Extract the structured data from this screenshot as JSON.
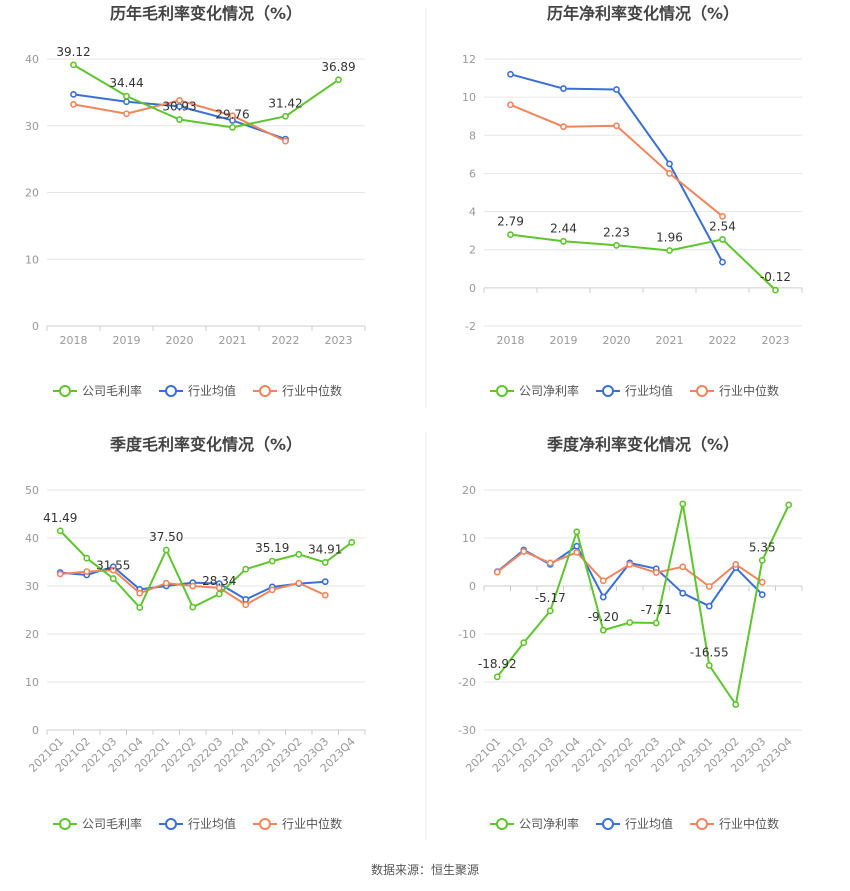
{
  "source_text": "数据来源：恒生聚源",
  "colors": {
    "company": "#5ec52e",
    "industry_avg": "#3a6fd8",
    "industry_median": "#f0855e",
    "grid": "#e6e6e6",
    "axis": "#cccccc",
    "tick_text": "#999999",
    "title_text": "#444444",
    "label_text": "#333333"
  },
  "chart_data": [
    {
      "type": "line",
      "title": "历年毛利率变化情况（%）",
      "categories": [
        "2018",
        "2019",
        "2020",
        "2021",
        "2022",
        "2023"
      ],
      "ylim": [
        0,
        40
      ],
      "yticks": [
        0,
        10,
        20,
        30,
        40
      ],
      "rotate_x_labels": false,
      "legend_position": "bottom",
      "series": [
        {
          "name": "公司毛利率",
          "color_key": "company",
          "labeled": true,
          "values": [
            39.12,
            34.44,
            30.93,
            29.76,
            31.42,
            36.89
          ],
          "labels": [
            "39.12",
            "34.44",
            "30.93",
            "29.76",
            "31.42",
            "36.89"
          ]
        },
        {
          "name": "行业均值",
          "color_key": "industry_avg",
          "labeled": false,
          "values": [
            34.7,
            33.6,
            32.9,
            30.8,
            28.0,
            null
          ]
        },
        {
          "name": "行业中位数",
          "color_key": "industry_median",
          "labeled": false,
          "values": [
            33.2,
            31.8,
            33.8,
            31.5,
            27.7,
            null
          ]
        }
      ]
    },
    {
      "type": "line",
      "title": "历年净利率变化情况（%）",
      "categories": [
        "2018",
        "2019",
        "2020",
        "2021",
        "2022",
        "2023"
      ],
      "ylim": [
        -2,
        12
      ],
      "yticks": [
        -2,
        0,
        2,
        4,
        6,
        8,
        10,
        12
      ],
      "rotate_x_labels": false,
      "legend_position": "bottom",
      "series": [
        {
          "name": "公司净利率",
          "color_key": "company",
          "labeled": true,
          "values": [
            2.79,
            2.44,
            2.23,
            1.96,
            2.54,
            -0.12
          ],
          "labels": [
            "2.79",
            "2.44",
            "2.23",
            "1.96",
            "2.54",
            "-0.12"
          ]
        },
        {
          "name": "行业均值",
          "color_key": "industry_avg",
          "labeled": false,
          "values": [
            11.2,
            10.45,
            10.4,
            6.5,
            1.35,
            null
          ]
        },
        {
          "name": "行业中位数",
          "color_key": "industry_median",
          "labeled": false,
          "values": [
            9.6,
            8.45,
            8.5,
            6.0,
            3.75,
            null
          ]
        }
      ]
    },
    {
      "type": "line",
      "title": "季度毛利率变化情况（%）",
      "categories": [
        "2021Q1",
        "2021Q2",
        "2021Q3",
        "2021Q4",
        "2022Q1",
        "2022Q2",
        "2022Q3",
        "2022Q4",
        "2023Q1",
        "2023Q2",
        "2023Q3",
        "2023Q4"
      ],
      "ylim": [
        0,
        50
      ],
      "yticks": [
        0,
        10,
        20,
        30,
        40,
        50
      ],
      "rotate_x_labels": true,
      "legend_position": "bottom",
      "series": [
        {
          "name": "公司毛利率",
          "color_key": "company",
          "labeled": true,
          "values": [
            41.49,
            35.8,
            31.55,
            25.5,
            37.5,
            25.6,
            28.34,
            33.5,
            35.19,
            36.6,
            34.91,
            39.1
          ],
          "labels": [
            "41.49",
            "",
            "31.55",
            "",
            "37.50",
            "",
            "28.34",
            "",
            "35.19",
            "",
            "34.91",
            ""
          ]
        },
        {
          "name": "行业均值",
          "color_key": "industry_avg",
          "labeled": false,
          "values": [
            32.8,
            32.3,
            34.0,
            29.3,
            30.0,
            30.7,
            30.5,
            27.2,
            29.8,
            30.5,
            30.9,
            null
          ]
        },
        {
          "name": "行业中位数",
          "color_key": "industry_median",
          "labeled": false,
          "values": [
            32.5,
            33.0,
            33.3,
            28.5,
            30.6,
            30.0,
            29.6,
            26.1,
            29.2,
            30.6,
            28.1,
            null
          ]
        }
      ]
    },
    {
      "type": "line",
      "title": "季度净利率变化情况（%）",
      "categories": [
        "2021Q1",
        "2021Q2",
        "2021Q3",
        "2021Q4",
        "2022Q1",
        "2022Q2",
        "2022Q3",
        "2022Q4",
        "2023Q1",
        "2023Q2",
        "2023Q3",
        "2023Q4"
      ],
      "ylim": [
        -30,
        20
      ],
      "yticks": [
        -30,
        -20,
        -10,
        0,
        10,
        20
      ],
      "rotate_x_labels": true,
      "legend_position": "bottom",
      "series": [
        {
          "name": "公司净利率",
          "color_key": "company",
          "labeled": true,
          "values": [
            -18.92,
            -11.8,
            -5.17,
            11.3,
            -9.2,
            -7.6,
            -7.71,
            17.1,
            -16.55,
            -24.7,
            5.35,
            16.9
          ],
          "labels": [
            "-18.92",
            "",
            "-5.17",
            "",
            "-9.20",
            "",
            "-7.71",
            "",
            "-16.55",
            "",
            "5.35",
            ""
          ]
        },
        {
          "name": "行业均值",
          "color_key": "industry_avg",
          "labeled": false,
          "values": [
            3.0,
            7.5,
            4.5,
            8.3,
            -2.3,
            4.8,
            3.6,
            -1.5,
            -4.2,
            3.8,
            -1.8,
            null
          ]
        },
        {
          "name": "行业中位数",
          "color_key": "industry_median",
          "labeled": false,
          "values": [
            2.9,
            7.2,
            4.8,
            7.0,
            1.1,
            4.5,
            2.8,
            4.0,
            -0.1,
            4.5,
            0.8,
            null
          ]
        }
      ]
    }
  ]
}
